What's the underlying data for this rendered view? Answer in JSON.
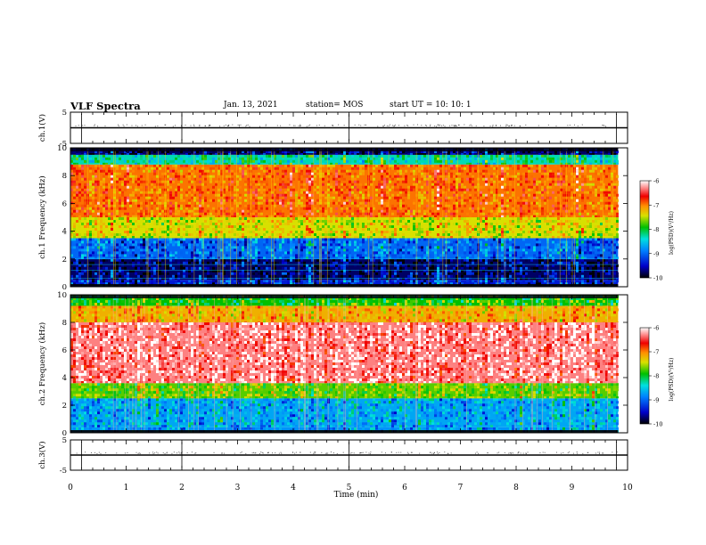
{
  "header": {
    "title": "VLF Spectra",
    "date": "Jan. 13, 2021",
    "station": "station= MOS",
    "start": "start  UT =    10: 10: 1"
  },
  "chart_data": [
    {
      "type": "line",
      "panel": "ch1-waveform",
      "ylabel": "ch.1(V)",
      "ylim": [
        -5,
        5
      ],
      "yticks": [
        "5",
        "-5"
      ],
      "x": [
        0,
        10
      ],
      "values": [
        0,
        0
      ]
    },
    {
      "type": "heatmap",
      "panel": "ch1-spectrogram",
      "ylabel": "ch.1 Frequency (kHz)",
      "ylim": [
        0,
        10
      ],
      "yticks": [
        "0",
        "2",
        "4",
        "6",
        "8",
        "10"
      ],
      "xlim": [
        0,
        10
      ],
      "bands": [
        {
          "from": 0.0,
          "to": 0.5,
          "level": -9.5
        },
        {
          "from": 0.5,
          "to": 2.0,
          "level": -9.8
        },
        {
          "from": 2.0,
          "to": 3.5,
          "level": -9.2
        },
        {
          "from": 3.5,
          "to": 5.0,
          "level": -7.6
        },
        {
          "from": 5.0,
          "to": 8.8,
          "level": -7.0
        },
        {
          "from": 8.8,
          "to": 9.5,
          "level": -8.5
        },
        {
          "from": 9.5,
          "to": 10.0,
          "level": -9.8
        }
      ],
      "colorbar": {
        "label": "log(PSD)(V²/Hz)",
        "range": [
          -10,
          -6
        ],
        "ticks": [
          "-6",
          "-7",
          "-8",
          "-9",
          "-10"
        ]
      }
    },
    {
      "type": "heatmap",
      "panel": "ch2-spectrogram",
      "ylabel": "ch.2 Frequency (kHz)",
      "ylim": [
        0,
        10
      ],
      "yticks": [
        "0",
        "2",
        "4",
        "6",
        "8",
        "10"
      ],
      "xlim": [
        0,
        10
      ],
      "bands": [
        {
          "from": 0.0,
          "to": 0.4,
          "level": -9.0
        },
        {
          "from": 0.4,
          "to": 2.5,
          "level": -8.9
        },
        {
          "from": 2.5,
          "to": 3.6,
          "level": -7.9
        },
        {
          "from": 3.6,
          "to": 8.0,
          "level": -6.3
        },
        {
          "from": 8.0,
          "to": 9.2,
          "level": -7.3
        },
        {
          "from": 9.2,
          "to": 10.0,
          "level": -8.1
        }
      ],
      "colorbar": {
        "label": "log(PSD)(V²/Hz)",
        "range": [
          -10,
          -6
        ],
        "ticks": [
          "-6",
          "-7",
          "-8",
          "-9",
          "-10"
        ]
      }
    },
    {
      "type": "line",
      "panel": "ch3-waveform",
      "ylabel": "ch.3(V)",
      "ylim": [
        -5,
        5
      ],
      "yticks": [
        "5",
        "-5"
      ],
      "x": [
        0,
        10
      ],
      "values": [
        0,
        0
      ]
    }
  ],
  "xaxis": {
    "label": "Time (min)",
    "ticks": [
      "0",
      "1",
      "2",
      "3",
      "4",
      "5",
      "6",
      "7",
      "8",
      "9",
      "10"
    ],
    "data_end": 9.83
  }
}
